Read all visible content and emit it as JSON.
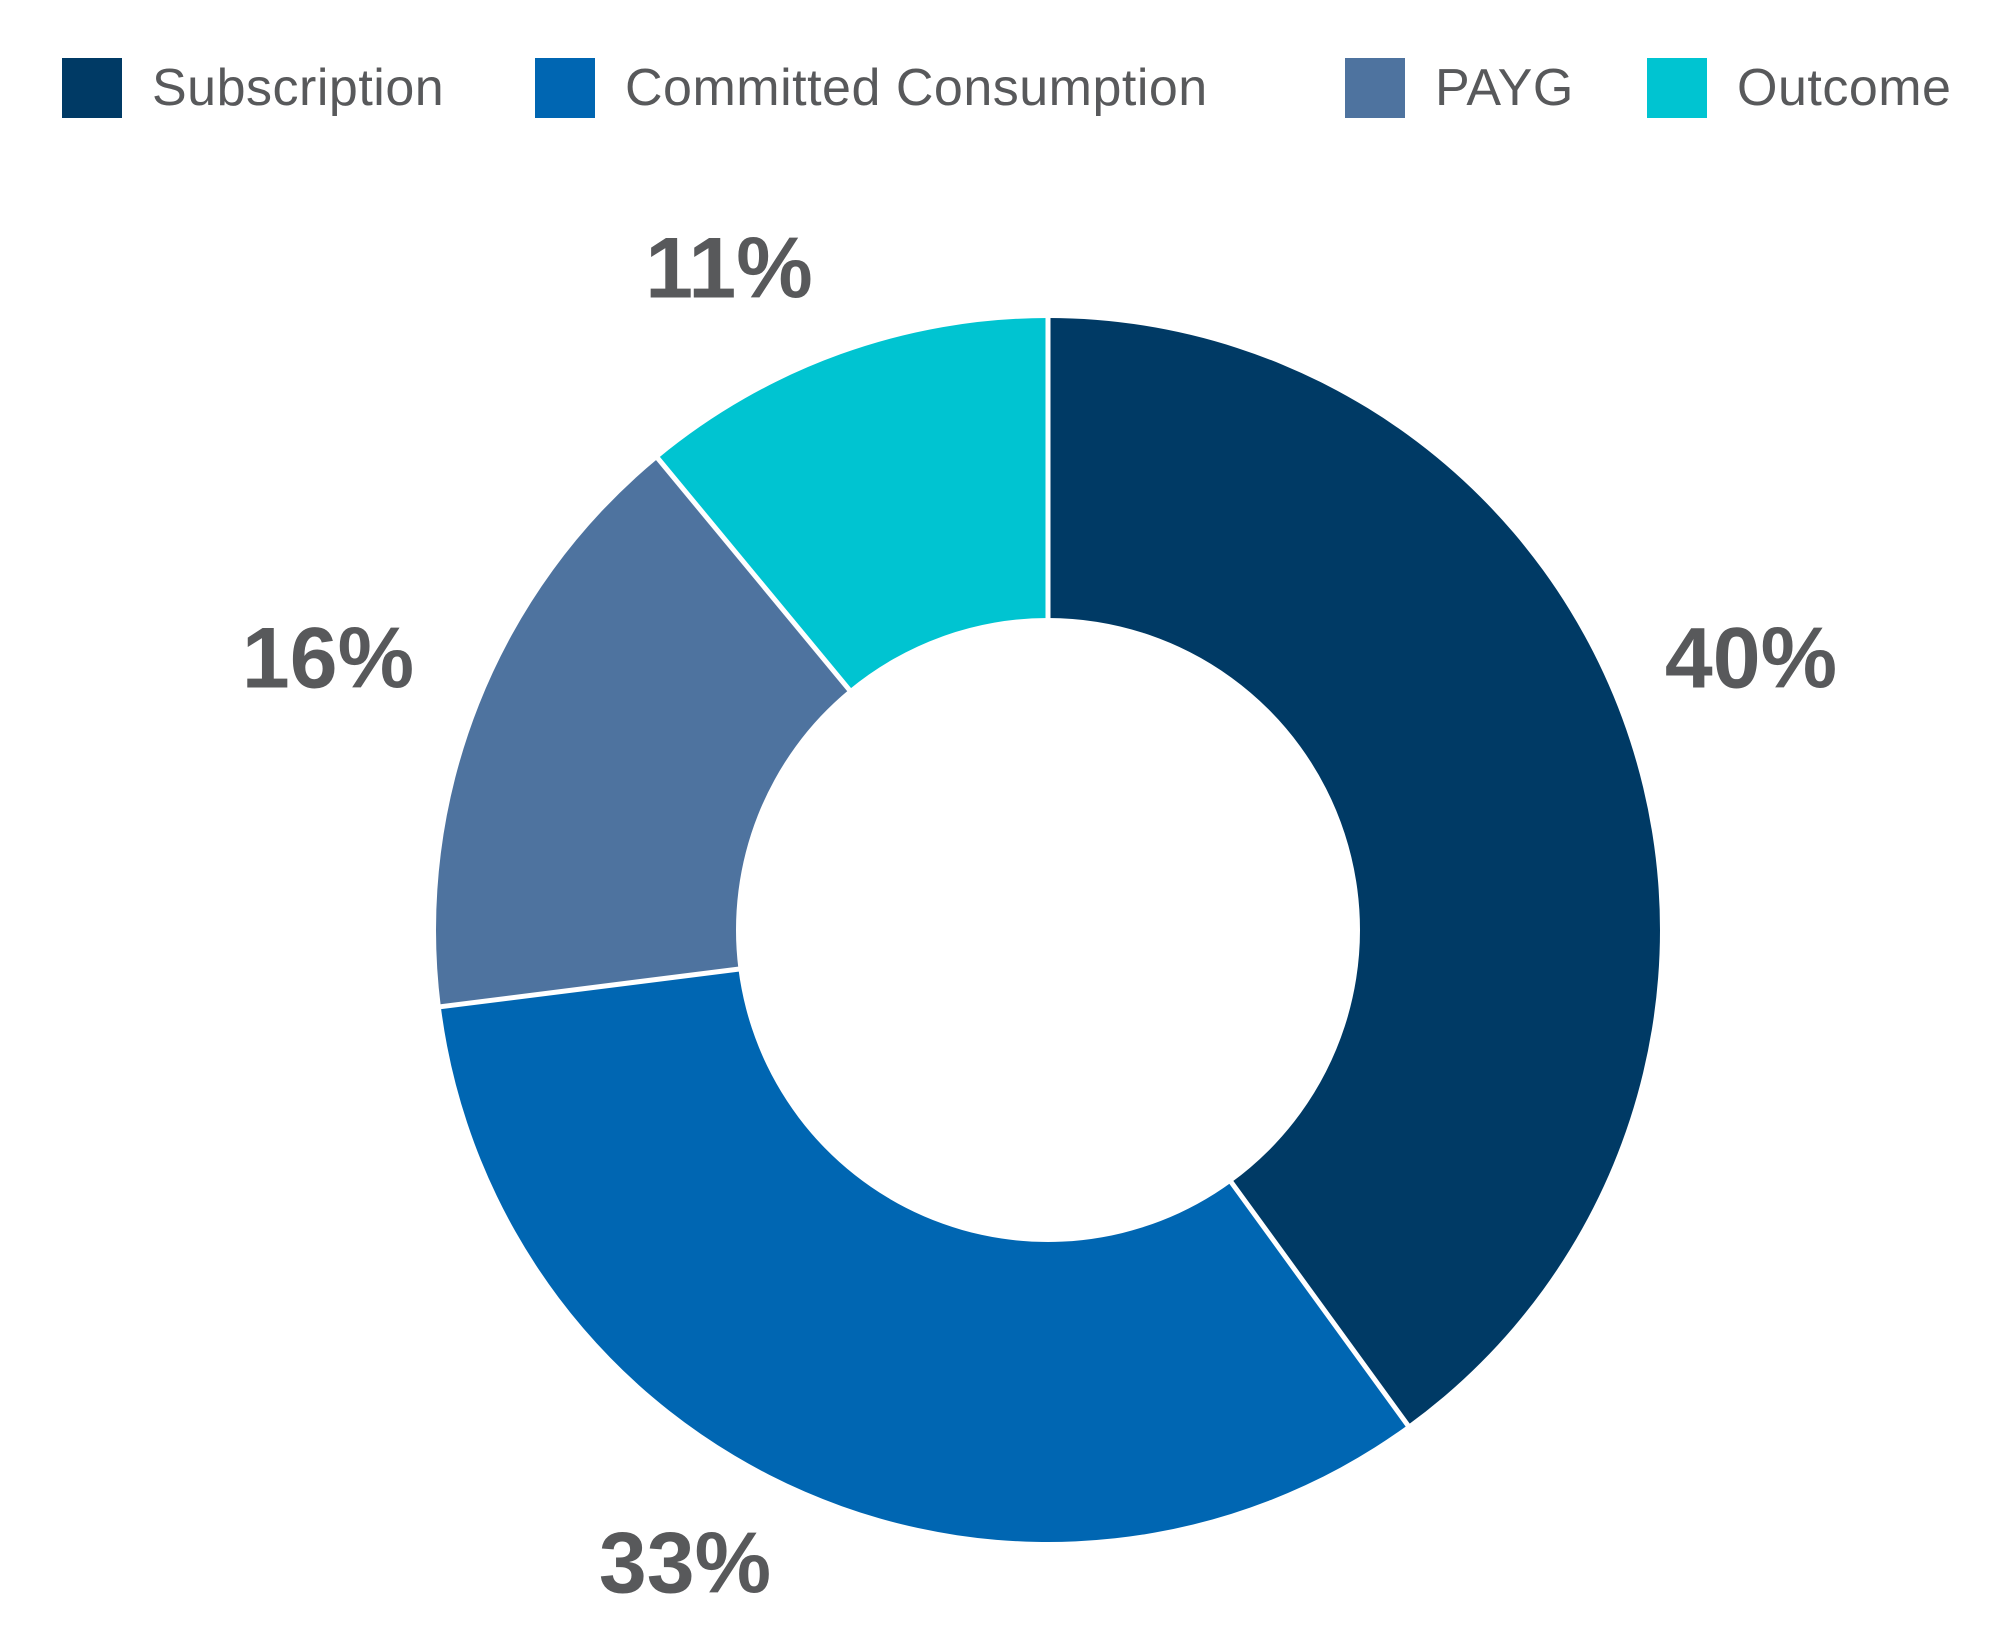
{
  "chart_data": {
    "type": "pie",
    "subtype": "donut",
    "title": "",
    "legend_position": "top",
    "direction": "clockwise",
    "start_angle_deg": 0,
    "inner_radius_ratio": 0.51,
    "categories": [
      "Subscription",
      "Committed Consumption",
      "PAYG",
      "Outcome"
    ],
    "values": [
      40,
      33,
      16,
      11
    ],
    "unit": "%",
    "slices": [
      {
        "name": "Subscription",
        "value": 40,
        "label": "40%",
        "color": "#003a65"
      },
      {
        "name": "Committed Consumption",
        "value": 33,
        "label": "33%",
        "color": "#0066b2"
      },
      {
        "name": "PAYG",
        "value": 16,
        "label": "16%",
        "color": "#4e739f"
      },
      {
        "name": "Outcome",
        "value": 11,
        "label": "11%",
        "color": "#00c4d1"
      }
    ],
    "value_label_color": "#58595b",
    "legend_text_color": "#58595b",
    "separator_color": "#ffffff",
    "background_color": "#ffffff"
  }
}
